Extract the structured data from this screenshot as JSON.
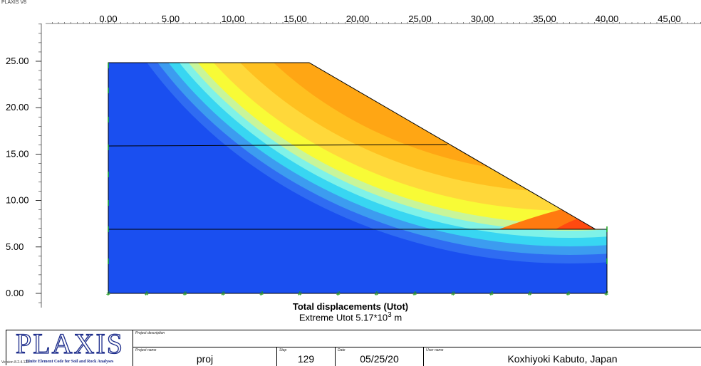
{
  "app": {
    "title": "PLAXIS V8",
    "version": "Version 8.2.4.123"
  },
  "plot": {
    "x_ticks": [
      "0.00",
      "5.00",
      "10.00",
      "15.00",
      "20.00",
      "25.00",
      "30.00",
      "35.00",
      "40.00",
      "45.00"
    ],
    "y_ticks": [
      "25.00",
      "20.00",
      "15.00",
      "10.00",
      "5.00",
      "0.00"
    ],
    "colors": {
      "deep_blue": "#1a4ff0",
      "blue": "#2f6cf2",
      "mid_blue": "#3c9cf0",
      "cyan": "#38d6f2",
      "light_cyan": "#7ff2e8",
      "pale_green": "#c8f59a",
      "yellow": "#f8fb36",
      "gold": "#ffd83a",
      "light_orange": "#ffc020",
      "orange": "#ffa614",
      "dark_orange": "#ff7a10",
      "red_orange": "#ff4a10"
    }
  },
  "caption": {
    "title": "Total displacements (Utot)",
    "sub_prefix": "Extreme Utot 5.17*10",
    "sub_exp": "3",
    "sub_unit": " m"
  },
  "info": {
    "logo_word": "PLAXIS",
    "logo_tag": "Finite Element Code for Soil and Rock Analyses",
    "project_description_label": "Project description",
    "project_name_label": "Project name",
    "project_name": "proj",
    "step_label": "Step",
    "step": "129",
    "date_label": "Date",
    "date": "05/25/20",
    "user_name_label": "User name",
    "user_name": "Koxhiyoki Kabuto, Japan"
  }
}
